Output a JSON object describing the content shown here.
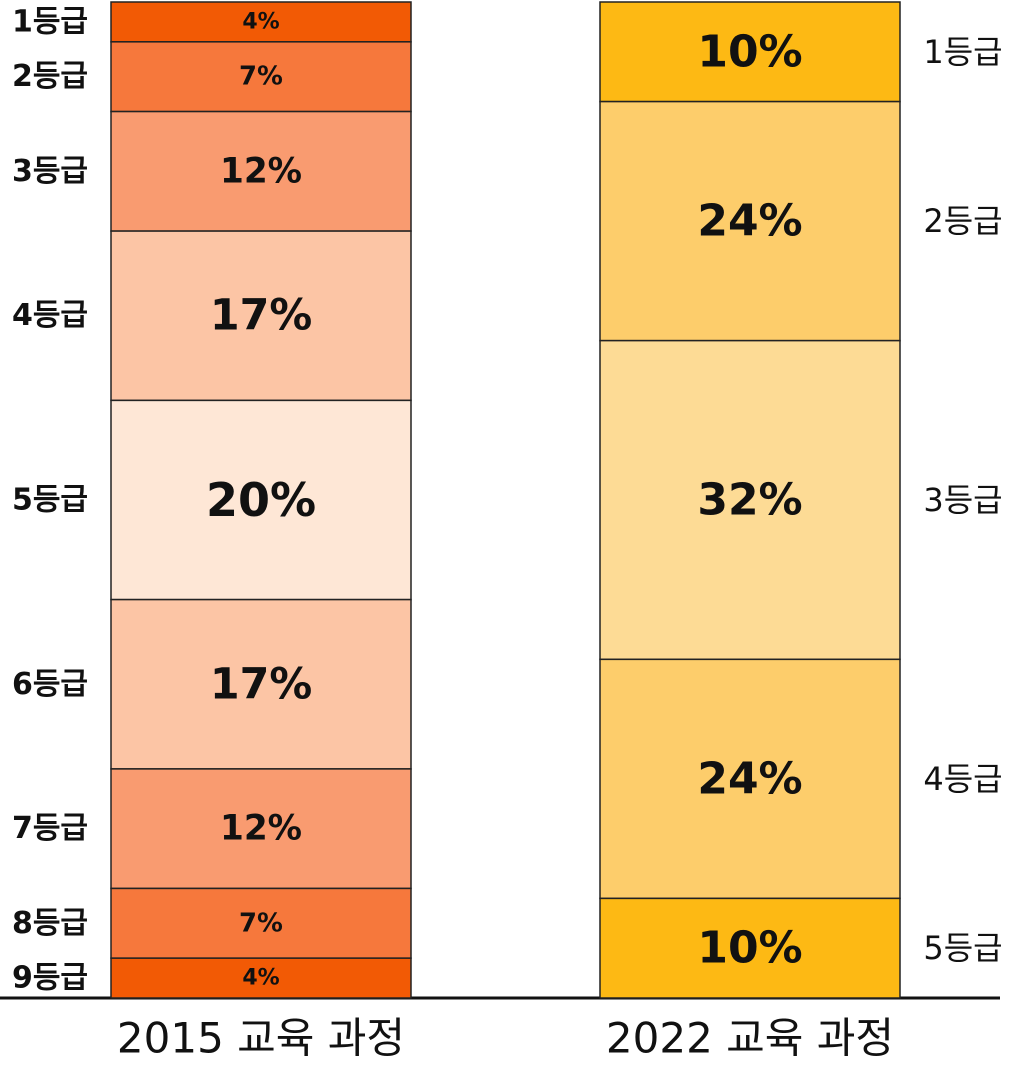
{
  "chart_data": {
    "type": "stacked-column",
    "columns": [
      {
        "name": "2015 교육 과정",
        "labels": [
          "1등급",
          "2등급",
          "3등급",
          "4등급",
          "5등급",
          "6등급",
          "7등급",
          "8등급",
          "9등급"
        ],
        "values": [
          4,
          7,
          12,
          17,
          20,
          17,
          12,
          7,
          4
        ],
        "value_labels": [
          "4%",
          "7%",
          "12%",
          "17%",
          "20%",
          "17%",
          "12%",
          "7%",
          "4%"
        ],
        "colors": [
          "#f25a05",
          "#f6783c",
          "#f99b70",
          "#fcc5a5",
          "#fee7d6",
          "#fcc5a5",
          "#f99b70",
          "#f6783c",
          "#f25a05"
        ]
      },
      {
        "name": "2022 교육 과정",
        "labels": [
          "1등급",
          "2등급",
          "3등급",
          "4등급",
          "5등급"
        ],
        "values": [
          10,
          24,
          32,
          24,
          10
        ],
        "value_labels": [
          "10%",
          "24%",
          "32%",
          "24%",
          "10%"
        ],
        "colors": [
          "#fdb914",
          "#fdcd6b",
          "#fddb95",
          "#fdcd6b",
          "#fdb914"
        ]
      }
    ]
  }
}
